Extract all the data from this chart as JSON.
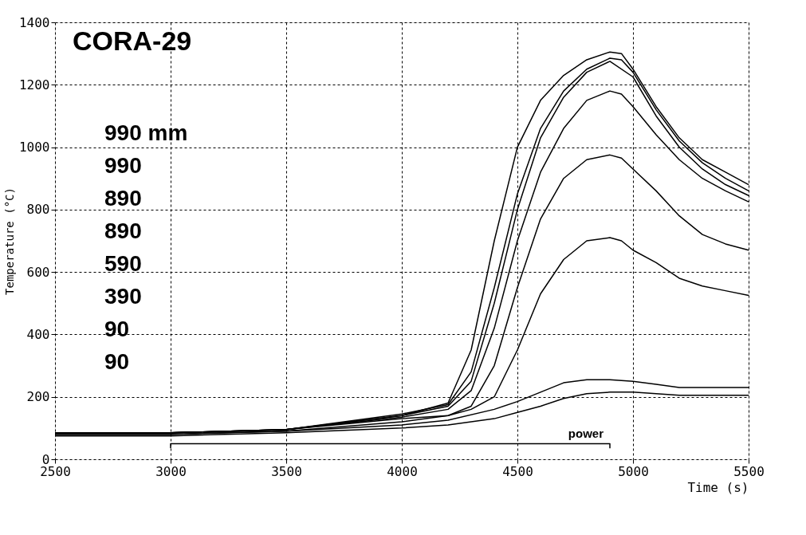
{
  "chart_data": {
    "type": "line",
    "title": "CORA-29",
    "xlabel": "Time (s)",
    "ylabel": "Temperature (°C)",
    "xlim": [
      2500,
      5500
    ],
    "xticks": [
      2500,
      3000,
      3500,
      4000,
      4500,
      5000,
      5500
    ],
    "ylim": [
      0,
      1400
    ],
    "yticks": [
      0,
      200,
      400,
      600,
      800,
      1000,
      1200,
      1400
    ],
    "grid": true,
    "legend": false,
    "marker": "none",
    "line_style": "solid",
    "annotations": [
      "990 mm",
      "990",
      "890",
      "890",
      "590",
      "390",
      "90",
      "90",
      "power"
    ],
    "series": [
      {
        "color": "#000000",
        "x": [
          2500,
          3000,
          3500,
          4000,
          4200,
          4300,
          4400,
          4500,
          4600,
          4700,
          4800,
          4900,
          4950,
          5000,
          5100,
          5200,
          5300,
          5400,
          5500
        ],
        "values": [
          85,
          85,
          95,
          140,
          180,
          350,
          700,
          1000,
          1150,
          1230,
          1280,
          1305,
          1300,
          1250,
          1130,
          1030,
          960,
          920,
          880
        ]
      },
      {
        "color": "#000000",
        "x": [
          2500,
          3000,
          3500,
          4000,
          4200,
          4300,
          4400,
          4500,
          4600,
          4700,
          4800,
          4900,
          4950,
          5000,
          5100,
          5200,
          5300,
          5400,
          5500
        ],
        "values": [
          85,
          85,
          95,
          145,
          175,
          280,
          550,
          850,
          1060,
          1180,
          1250,
          1285,
          1280,
          1240,
          1120,
          1020,
          950,
          900,
          860
        ]
      },
      {
        "color": "#000000",
        "x": [
          2500,
          3000,
          3500,
          4000,
          4200,
          4300,
          4400,
          4500,
          4600,
          4700,
          4800,
          4900,
          5000,
          5100,
          5200,
          5300,
          5400,
          5500
        ],
        "values": [
          85,
          85,
          95,
          140,
          170,
          250,
          500,
          800,
          1030,
          1160,
          1240,
          1275,
          1225,
          1100,
          1000,
          930,
          880,
          845
        ]
      },
      {
        "color": "#000000",
        "x": [
          2500,
          3000,
          3500,
          4000,
          4200,
          4300,
          4400,
          4500,
          4600,
          4700,
          4800,
          4900,
          4950,
          5000,
          5100,
          5200,
          5300,
          5400,
          5500
        ],
        "values": [
          85,
          85,
          95,
          135,
          160,
          220,
          420,
          700,
          920,
          1060,
          1150,
          1180,
          1170,
          1130,
          1040,
          960,
          900,
          860,
          825
        ]
      },
      {
        "color": "#000000",
        "x": [
          2500,
          3000,
          3500,
          4000,
          4200,
          4300,
          4400,
          4500,
          4600,
          4700,
          4800,
          4900,
          4950,
          5000,
          5100,
          5200,
          5300,
          5400,
          5500
        ],
        "values": [
          85,
          85,
          95,
          130,
          140,
          170,
          300,
          550,
          770,
          900,
          960,
          975,
          965,
          930,
          860,
          780,
          720,
          690,
          670
        ]
      },
      {
        "color": "#000000",
        "x": [
          2500,
          3000,
          3500,
          4000,
          4200,
          4300,
          4400,
          4500,
          4600,
          4700,
          4800,
          4900,
          4950,
          5000,
          5100,
          5200,
          5300,
          5400,
          5500
        ],
        "values": [
          80,
          80,
          90,
          120,
          140,
          160,
          200,
          350,
          530,
          640,
          700,
          710,
          700,
          670,
          630,
          580,
          555,
          540,
          525
        ]
      },
      {
        "color": "#000000",
        "x": [
          2500,
          3000,
          3500,
          4000,
          4200,
          4400,
          4500,
          4600,
          4700,
          4800,
          4900,
          5000,
          5100,
          5200,
          5300,
          5400,
          5500
        ],
        "values": [
          80,
          80,
          90,
          110,
          125,
          160,
          185,
          215,
          245,
          255,
          255,
          250,
          240,
          230,
          230,
          230,
          230
        ]
      },
      {
        "color": "#000000",
        "x": [
          2500,
          3000,
          3500,
          4000,
          4200,
          4400,
          4500,
          4600,
          4700,
          4800,
          4900,
          5000,
          5100,
          5200,
          5300,
          5400,
          5500
        ],
        "values": [
          75,
          75,
          85,
          100,
          110,
          130,
          150,
          170,
          195,
          210,
          215,
          215,
          210,
          205,
          205,
          205,
          205
        ]
      },
      {
        "color": "#000000",
        "x": [
          3000,
          3000,
          4900,
          4900
        ],
        "values": [
          35,
          50,
          50,
          35
        ]
      }
    ]
  }
}
